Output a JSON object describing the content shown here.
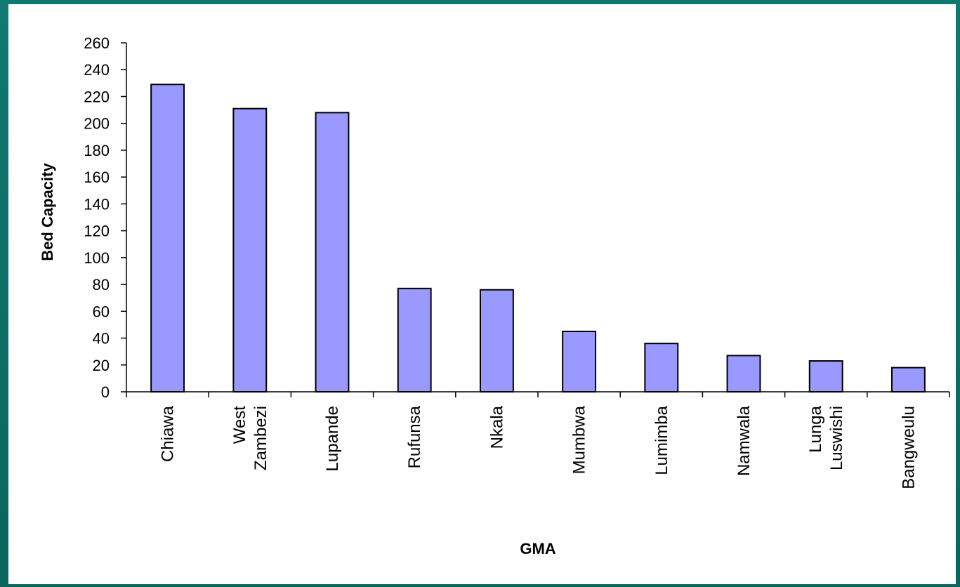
{
  "chart_data": {
    "type": "bar",
    "title": "",
    "xlabel": "GMA",
    "ylabel": "Bed Capacity",
    "categories": [
      [
        "Chiawa"
      ],
      [
        "West",
        "Zambezi"
      ],
      [
        "Lupande"
      ],
      [
        "Rufunsa"
      ],
      [
        "Nkala"
      ],
      [
        "Mumbwa"
      ],
      [
        "Lumimba"
      ],
      [
        "Namwala"
      ],
      [
        "Lunga",
        "Luswishi"
      ],
      [
        "Bangweulu"
      ]
    ],
    "values": [
      229,
      211,
      208,
      77,
      76,
      45,
      36,
      27,
      23,
      18
    ],
    "ylim": [
      0,
      260
    ],
    "yticks": [
      0,
      20,
      40,
      60,
      80,
      100,
      120,
      140,
      160,
      180,
      200,
      220,
      240,
      260
    ],
    "grid": false,
    "legend": "none",
    "colors": {
      "bar_fill": "#9999ff",
      "bar_stroke": "#000000",
      "background": "#ffffff",
      "frame": "#0b6f66"
    }
  }
}
